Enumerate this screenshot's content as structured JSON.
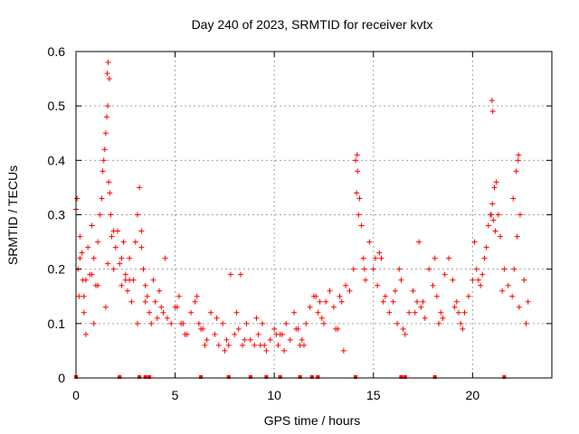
{
  "chart_data": {
    "type": "scatter",
    "title": "Day 240 of 2023, SRMTID for receiver kvtx",
    "xlabel": "GPS time / hours",
    "ylabel": "SRMTID / TECUs",
    "xlim": [
      0,
      24
    ],
    "ylim": [
      0,
      0.6
    ],
    "x_ticks": [
      0,
      5,
      10,
      15,
      20
    ],
    "y_ticks": [
      0,
      0.1,
      0.2,
      0.3,
      0.4,
      0.5,
      0.6
    ],
    "x_tick_labels": [
      "0",
      "5",
      "10",
      "15",
      "20"
    ],
    "y_tick_labels": [
      "0",
      "0.1",
      "0.2",
      "0.3",
      "0.4",
      "0.5",
      "0.6"
    ],
    "grid": true,
    "marker": "+",
    "color": "#ff0000",
    "series": [
      {
        "name": "SRMTID",
        "x": [
          0.0,
          0.05,
          0.1,
          0.15,
          0.2,
          0.3,
          0.35,
          0.4,
          0.5,
          0.6,
          0.7,
          0.8,
          0.9,
          1.0,
          1.1,
          1.2,
          1.3,
          1.35,
          1.4,
          1.45,
          1.5,
          1.55,
          1.6,
          1.65,
          1.7,
          1.75,
          1.8,
          1.9,
          2.0,
          2.1,
          2.2,
          2.3,
          2.4,
          2.5,
          2.6,
          2.7,
          2.8,
          2.9,
          3.0,
          3.1,
          3.2,
          3.3,
          3.4,
          3.5,
          3.6,
          3.7,
          3.8,
          3.9,
          4.0,
          4.2,
          4.4,
          4.6,
          4.8,
          5.0,
          5.2,
          5.4,
          5.6,
          5.8,
          6.0,
          6.2,
          6.4,
          6.6,
          6.8,
          7.0,
          7.2,
          7.4,
          7.6,
          7.8,
          8.0,
          8.2,
          8.4,
          8.6,
          8.8,
          9.0,
          9.2,
          9.4,
          9.6,
          9.8,
          10.0,
          10.2,
          10.4,
          10.6,
          10.8,
          11.0,
          11.2,
          11.4,
          11.6,
          11.8,
          12.0,
          12.2,
          12.4,
          12.6,
          12.8,
          13.0,
          13.2,
          13.4,
          13.6,
          13.8,
          14.0,
          14.1,
          14.2,
          14.3,
          14.4,
          14.5,
          14.6,
          14.8,
          15.0,
          15.2,
          15.4,
          15.6,
          15.8,
          16.0,
          16.2,
          16.4,
          16.6,
          16.8,
          17.0,
          17.2,
          17.4,
          17.6,
          17.8,
          18.0,
          18.2,
          18.4,
          18.6,
          18.8,
          19.0,
          19.2,
          19.4,
          19.6,
          19.8,
          20.0,
          20.2,
          20.4,
          20.6,
          20.7,
          20.8,
          20.9,
          21.0,
          21.1,
          21.2,
          21.3,
          21.4,
          21.6,
          21.8,
          22.0,
          22.1,
          22.2,
          22.3,
          22.4,
          22.6,
          22.8,
          0.2,
          0.5,
          0.8,
          1.1,
          1.5,
          1.9,
          2.3,
          2.7,
          3.1,
          3.5,
          4.1,
          4.5,
          5.1,
          5.5,
          6.1,
          6.5,
          7.1,
          7.5,
          8.1,
          8.5,
          9.1,
          9.5,
          10.1,
          10.5,
          11.1,
          11.5,
          12.1,
          12.5,
          13.1,
          13.5,
          14.15,
          14.55,
          15.1,
          15.5,
          16.1,
          16.5,
          17.1,
          17.5,
          18.1,
          18.5,
          19.1,
          19.5,
          20.1,
          20.5,
          20.95,
          21.15,
          21.5,
          22.05,
          22.35,
          22.7,
          0.4,
          0.9,
          1.6,
          2.5,
          3.3,
          4.3,
          5.3,
          6.3,
          7.7,
          8.3,
          9.3,
          10.3,
          11.3,
          12.3,
          13.3,
          14.25,
          15.3,
          16.3,
          17.3,
          18.3,
          19.3,
          20.3,
          21.05,
          22.25,
          1.62,
          1.68,
          1.58,
          20.98,
          21.02,
          14.18,
          22.32
        ],
        "y": [
          0.31,
          0.33,
          0.2,
          0.15,
          0.26,
          0.23,
          0.18,
          0.12,
          0.08,
          0.24,
          0.19,
          0.28,
          0.22,
          0.17,
          0.25,
          0.3,
          0.33,
          0.38,
          0.4,
          0.42,
          0.45,
          0.48,
          0.5,
          0.36,
          0.34,
          0.3,
          0.26,
          0.2,
          0.24,
          0.27,
          0.21,
          0.17,
          0.25,
          0.19,
          0.16,
          0.22,
          0.14,
          0.18,
          0.25,
          0.3,
          0.35,
          0.27,
          0.2,
          0.17,
          0.15,
          0.12,
          0.1,
          0.18,
          0.14,
          0.16,
          0.12,
          0.11,
          0.1,
          0.13,
          0.15,
          0.1,
          0.08,
          0.12,
          0.14,
          0.1,
          0.09,
          0.07,
          0.12,
          0.08,
          0.06,
          0.1,
          0.07,
          0.19,
          0.08,
          0.09,
          0.06,
          0.1,
          0.07,
          0.06,
          0.08,
          0.1,
          0.05,
          0.07,
          0.09,
          0.06,
          0.08,
          0.1,
          0.07,
          0.12,
          0.09,
          0.07,
          0.1,
          0.13,
          0.15,
          0.12,
          0.11,
          0.14,
          0.16,
          0.13,
          0.09,
          0.14,
          0.17,
          0.16,
          0.2,
          0.4,
          0.38,
          0.33,
          0.28,
          0.22,
          0.18,
          0.25,
          0.2,
          0.17,
          0.22,
          0.15,
          0.12,
          0.14,
          0.1,
          0.18,
          0.08,
          0.12,
          0.16,
          0.14,
          0.13,
          0.11,
          0.2,
          0.17,
          0.15,
          0.12,
          0.19,
          0.22,
          0.18,
          0.14,
          0.1,
          0.12,
          0.15,
          0.18,
          0.2,
          0.17,
          0.22,
          0.24,
          0.28,
          0.3,
          0.32,
          0.35,
          0.36,
          0.3,
          0.26,
          0.2,
          0.17,
          0.15,
          0.2,
          0.38,
          0.4,
          0.3,
          0.18,
          0.14,
          0.22,
          0.18,
          0.19,
          0.17,
          0.13,
          0.27,
          0.22,
          0.18,
          0.1,
          0.14,
          0.11,
          0.22,
          0.13,
          0.08,
          0.15,
          0.06,
          0.11,
          0.05,
          0.12,
          0.07,
          0.11,
          0.06,
          0.08,
          0.05,
          0.09,
          0.06,
          0.15,
          0.1,
          0.09,
          0.05,
          0.34,
          0.2,
          0.22,
          0.14,
          0.16,
          0.09,
          0.12,
          0.14,
          0.22,
          0.11,
          0.13,
          0.09,
          0.25,
          0.19,
          0.3,
          0.27,
          0.16,
          0.33,
          0.13,
          0.1,
          0.15,
          0.1,
          0.21,
          0.18,
          0.24,
          0.13,
          0.1,
          0.09,
          0.06,
          0.19,
          0.06,
          0.08,
          0.06,
          0.14,
          0.15,
          0.3,
          0.23,
          0.2,
          0.25,
          0.1,
          0.12,
          0.18,
          0.29,
          0.26,
          0.58,
          0.55,
          0.56,
          0.51,
          0.49,
          0.41,
          0.41
        ],
        "baseline_x": [
          0.0,
          2.2,
          3.2,
          3.5,
          3.7,
          6.3,
          7.7,
          8.8,
          9.6,
          10.3,
          11.3,
          11.9,
          12.2,
          14.1,
          16.4,
          16.6,
          18.1,
          21.6
        ]
      }
    ]
  }
}
